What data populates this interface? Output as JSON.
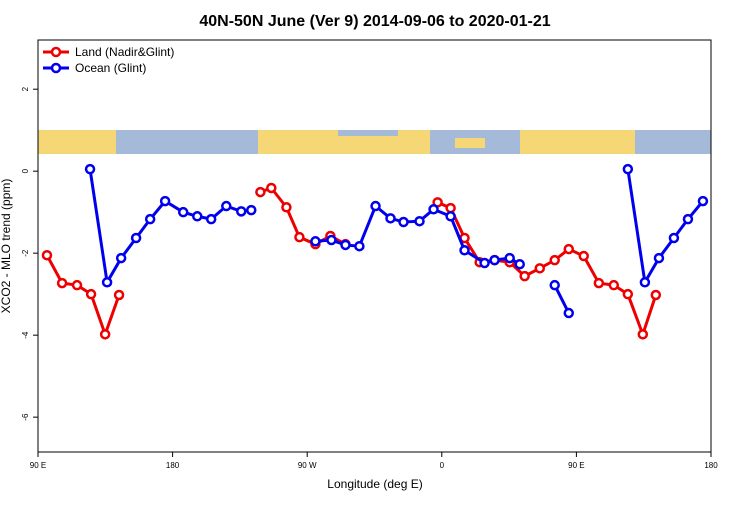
{
  "chart_data": {
    "type": "line",
    "title": "40N-50N June (Ver 9)   2014-09-06 to 2020-01-21",
    "x_label": "Longitude (deg E)",
    "y_label": "XCO2 - MLO trend (ppm)",
    "xlim": [
      90,
      540
    ],
    "ylim": [
      -6.85,
      3.2
    ],
    "xticks": [
      {
        "value": 90,
        "label": "90 E"
      },
      180,
      {
        "value": 270,
        "label": "90 W"
      },
      {
        "value": 360,
        "label": "0"
      },
      {
        "value": 450,
        "label": "90 E"
      },
      {
        "value": 540,
        "label": "180"
      }
    ],
    "yticks": [
      2,
      0,
      -2,
      -4,
      -6
    ],
    "legend": "top-left",
    "series": [
      {
        "name": "Land (Nadir&Glint)",
        "color": "#ee0000",
        "x": [
          96.0,
          106.1,
          116.1,
          125.5,
          134.9,
          144.2,
          null,
          238.7,
          246.0,
          256.1,
          264.8,
          275.5,
          285.5,
          295.6,
          null,
          357.2,
          365.9,
          375.2,
          385.3,
          395.3,
          405.4,
          415.4,
          425.5,
          435.5,
          444.9,
          454.9,
          465.0,
          475.0,
          484.4,
          494.4,
          503.1
        ],
        "values": [
          -2.05,
          -2.73,
          -2.78,
          -3.0,
          -3.98,
          -3.02,
          null,
          -0.51,
          -0.41,
          -0.88,
          -1.61,
          -1.78,
          -1.58,
          -1.78,
          null,
          -0.76,
          -0.9,
          -1.63,
          -2.22,
          -2.17,
          -2.22,
          -2.56,
          -2.37,
          -2.17,
          -1.9,
          -2.07,
          -2.73,
          -2.78,
          -3.0,
          -3.98,
          -3.02
        ]
      },
      {
        "name": "Ocean (Glint)",
        "color": "#0000ee",
        "x": [
          124.8,
          136.2,
          145.6,
          155.6,
          165.0,
          175.0,
          187.1,
          196.5,
          205.8,
          215.9,
          225.9,
          232.6,
          null,
          275.5,
          286.2,
          295.6,
          304.9,
          315.7,
          325.7,
          334.4,
          345.1,
          354.5,
          365.9,
          375.2,
          388.6,
          395.3,
          405.4,
          412.1,
          null,
          435.5,
          444.9,
          null,
          484.4,
          495.8,
          505.2,
          515.2,
          524.6,
          534.6
        ],
        "values": [
          0.05,
          -2.71,
          -2.12,
          -1.63,
          -1.17,
          -0.73,
          -1.0,
          -1.1,
          -1.17,
          -0.85,
          -0.98,
          -0.95,
          null,
          -1.71,
          -1.68,
          -1.8,
          -1.83,
          -0.85,
          -1.15,
          -1.24,
          -1.22,
          -0.93,
          -1.1,
          -1.93,
          -2.24,
          -2.17,
          -2.12,
          -2.27,
          null,
          -2.78,
          -3.46,
          null,
          0.05,
          -2.71,
          -2.12,
          -1.63,
          -1.17,
          -0.73
        ]
      }
    ]
  }
}
